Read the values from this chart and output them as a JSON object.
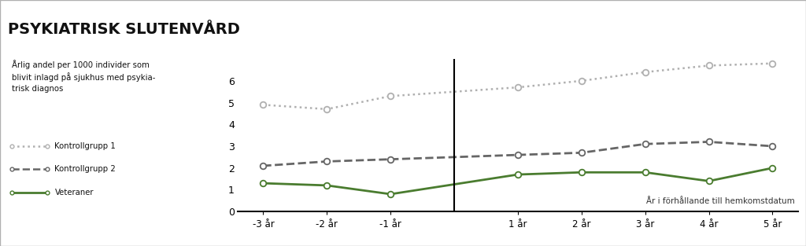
{
  "title": "PSYKIATRISK SLUTENVÅRD",
  "ylabel_text": "Årlig andel per 1000 individer som\nblivit inlagd på sjukhus med psykia-\ntrisk diagnos",
  "xlabel_note": "År i förhållande till hemkomstdatum",
  "x_labels": [
    "-3 år",
    "-2 år",
    "-1 år",
    "1 år",
    "2 år",
    "3 år",
    "4 år",
    "5 år"
  ],
  "x_values": [
    -3,
    -2,
    -1,
    1,
    2,
    3,
    4,
    5
  ],
  "kontrollgrupp1": [
    4.9,
    4.7,
    5.3,
    5.7,
    6.0,
    6.4,
    6.7,
    6.8
  ],
  "kontrollgrupp2": [
    2.1,
    2.3,
    2.4,
    2.6,
    2.7,
    3.1,
    3.2,
    3.0
  ],
  "veteraner": [
    1.3,
    1.2,
    0.8,
    1.7,
    1.8,
    1.8,
    1.4,
    2.0
  ],
  "color_k1": "#b0b0b0",
  "color_k2": "#666666",
  "color_vet": "#4a7c2f",
  "ylim": [
    0,
    7
  ],
  "yticks": [
    0,
    1,
    2,
    3,
    4,
    5,
    6
  ],
  "title_bg": "#d9d9d9",
  "title_fontsize": 14,
  "legend_labels": [
    "Kontrollgrupp 1",
    "Kontrollgrupp 2",
    "Veteraner"
  ],
  "vline_x": 0,
  "outer_border": "#b0b0b0"
}
